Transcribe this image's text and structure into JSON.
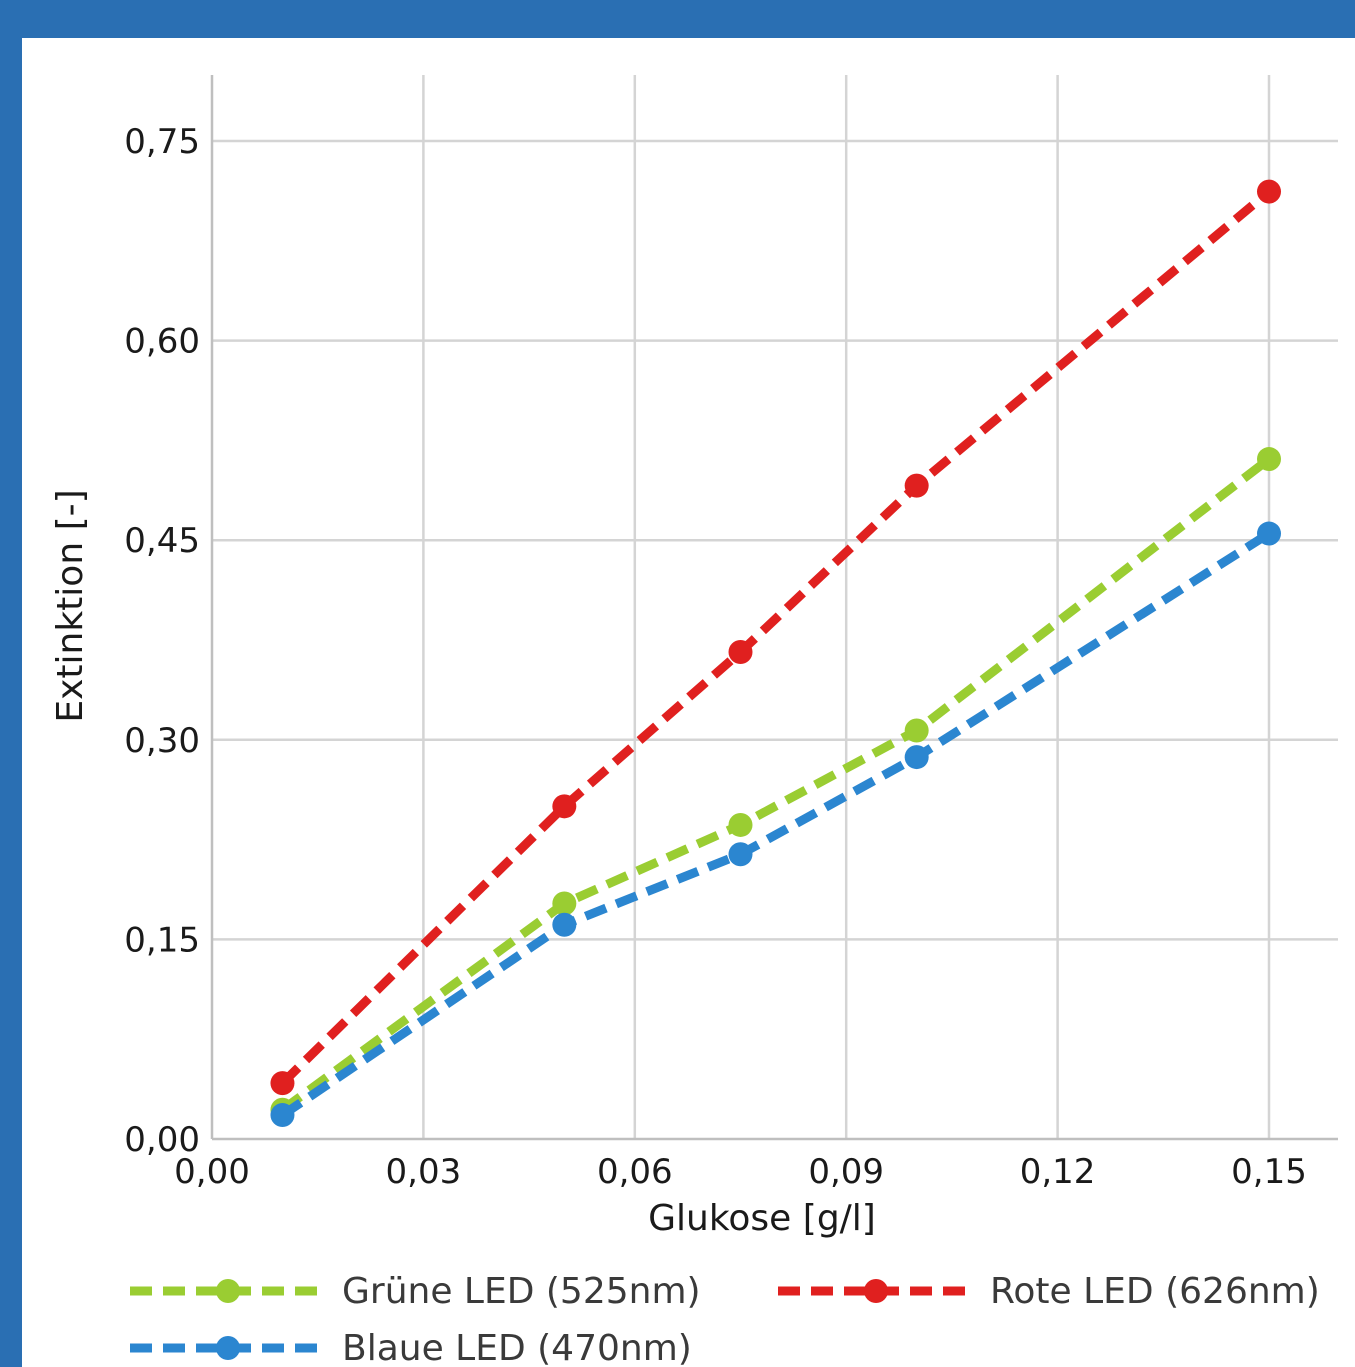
{
  "chart_data": {
    "type": "line",
    "xlabel": "Glukose [g/l]",
    "ylabel": "Extinktion [-]",
    "xlim": [
      0,
      0.16
    ],
    "ylim": [
      0,
      0.8
    ],
    "x_ticks": [
      0,
      0.03,
      0.06,
      0.09,
      0.12,
      0.15
    ],
    "x_tick_labels": [
      "0,00",
      "0,03",
      "0,06",
      "0,09",
      "0,12",
      "0,15"
    ],
    "y_ticks": [
      0,
      0.15,
      0.3,
      0.45,
      0.6,
      0.75
    ],
    "y_tick_labels": [
      "0,00",
      "0,15",
      "0,30",
      "0,45",
      "0,60",
      "0,75"
    ],
    "grid": true,
    "legend_position": "bottom",
    "x": [
      0.01,
      0.05,
      0.075,
      0.1,
      0.15
    ],
    "series": [
      {
        "name": "Grüne LED (525nm)",
        "color": "#9acd32",
        "values": [
          0.022,
          0.177,
          0.236,
          0.307,
          0.511
        ]
      },
      {
        "name": "Rote LED (626nm)",
        "color": "#e0201f",
        "values": [
          0.042,
          0.25,
          0.366,
          0.491,
          0.712
        ]
      },
      {
        "name": "Blaue LED (470nm)",
        "color": "#2b86d0",
        "values": [
          0.018,
          0.161,
          0.214,
          0.287,
          0.455
        ]
      }
    ]
  }
}
